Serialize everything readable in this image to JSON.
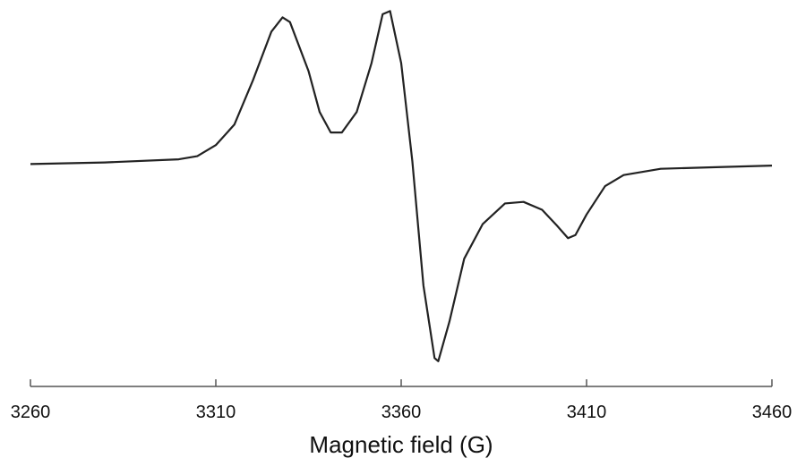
{
  "chart_data": {
    "type": "line",
    "x_label": "Magnetic field (G)",
    "x": [
      3260,
      3280,
      3300,
      3305,
      3310,
      3315,
      3320,
      3325,
      3328,
      3330,
      3335,
      3338,
      3341,
      3344,
      3348,
      3352,
      3355,
      3357,
      3360,
      3363,
      3366,
      3369,
      3370,
      3373,
      3377,
      3382,
      3388,
      3393,
      3398,
      3402,
      3405,
      3407,
      3410,
      3415,
      3420,
      3430,
      3445,
      3460
    ],
    "series": [
      {
        "color": "#222222",
        "values": [
          0.01,
          0.02,
          0.04,
          0.06,
          0.13,
          0.26,
          0.54,
          0.85,
          0.94,
          0.91,
          0.6,
          0.34,
          0.21,
          0.21,
          0.34,
          0.65,
          0.96,
          0.98,
          0.65,
          0.03,
          -0.76,
          -1.22,
          -1.24,
          -0.99,
          -0.59,
          -0.37,
          -0.24,
          -0.23,
          -0.28,
          -0.38,
          -0.46,
          -0.44,
          -0.31,
          -0.13,
          -0.06,
          -0.02,
          -0.01,
          0.0
        ]
      }
    ],
    "xlim": [
      3260,
      3460
    ],
    "xticks": [
      3260,
      3310,
      3360,
      3410,
      3460
    ],
    "ylim": [
      -1.4,
      1.05
    ]
  }
}
